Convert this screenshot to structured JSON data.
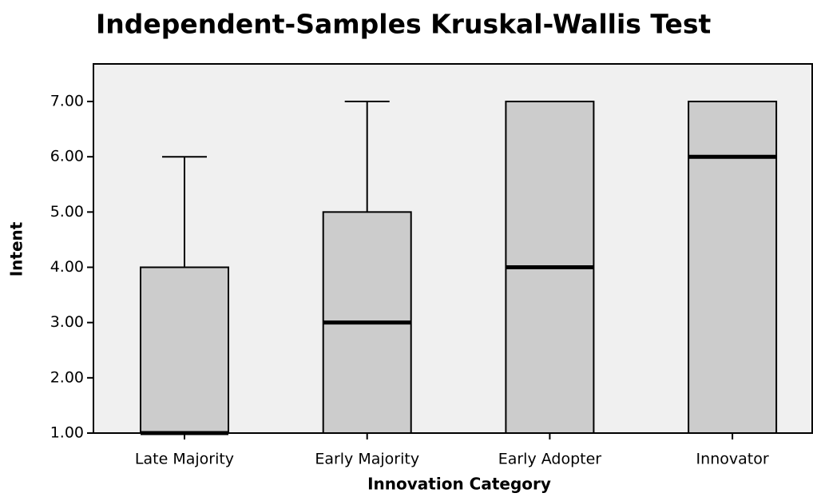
{
  "chart_data": {
    "type": "box",
    "title": "Independent-Samples Kruskal-Wallis Test",
    "x_label": "Innovation Category",
    "y_label": "Intent",
    "categories": [
      "Late Majority",
      "Early Majority",
      "Early Adopter",
      "Innovator"
    ],
    "boxes": [
      {
        "min": 1,
        "q1": 1,
        "median": 1,
        "q3": 4,
        "max": 6
      },
      {
        "min": 1,
        "q1": 1,
        "median": 3,
        "q3": 5,
        "max": 7
      },
      {
        "min": 1,
        "q1": 1,
        "median": 4,
        "q3": 7,
        "max": 7
      },
      {
        "min": 1,
        "q1": 1,
        "median": 6,
        "q3": 7,
        "max": 7
      }
    ],
    "color": "#cccccc",
    "background": "#f0f0f0",
    "ylim": [
      1,
      7.68
    ],
    "yticks": [
      {
        "value": 1,
        "label": "1.00"
      },
      {
        "value": 2,
        "label": "2.00"
      },
      {
        "value": 3,
        "label": "3.00"
      },
      {
        "value": 4,
        "label": "4.00"
      },
      {
        "value": 5,
        "label": "5.00"
      },
      {
        "value": 6,
        "label": "6.00"
      },
      {
        "value": 7,
        "label": "7.00"
      }
    ]
  }
}
